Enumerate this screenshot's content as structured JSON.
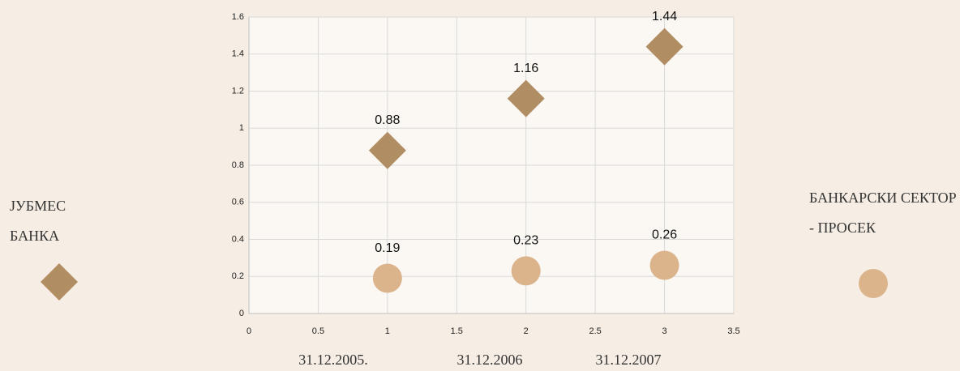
{
  "chart_data": {
    "type": "scatter",
    "x": [
      1,
      2,
      3
    ],
    "series": [
      {
        "name": "ЈУБМЕС БАНКА",
        "color": "#b08d62",
        "marker": "diamond",
        "values": [
          0.88,
          1.16,
          1.44
        ]
      },
      {
        "name": "БАНКАРСКИ СЕКТОР - ПРОСЕК",
        "color": "#dbb48c",
        "marker": "circle",
        "values": [
          0.19,
          0.23,
          0.26
        ]
      }
    ],
    "xlim": [
      0,
      3.5
    ],
    "xticks": [
      0,
      0.5,
      1,
      1.5,
      2,
      2.5,
      3,
      3.5
    ],
    "ylim": [
      0,
      1.6
    ],
    "yticks": [
      0,
      0.2,
      0.4,
      0.6,
      0.8,
      1,
      1.2,
      1.4,
      1.6
    ],
    "grid": true,
    "annotations": [
      "31.12.2005.",
      "31.12.2006",
      "31.12.2007"
    ]
  }
}
